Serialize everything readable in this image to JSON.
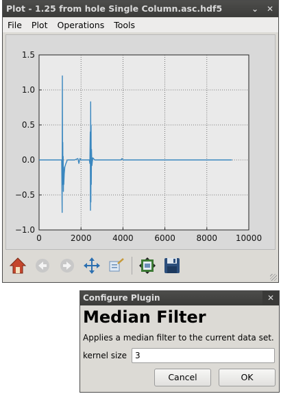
{
  "plot_window": {
    "title": "Plot - 1.25 from hole Single Column.asc.hdf5",
    "title_buttons": [
      "⌄",
      "✕"
    ],
    "menu": [
      "File",
      "Plot",
      "Operations",
      "Tools"
    ],
    "toolbar": [
      "home-icon",
      "back-icon",
      "forward-icon",
      "pan-icon",
      "zoom-icon",
      "subplots-icon",
      "save-icon"
    ]
  },
  "chart_data": {
    "type": "line",
    "title": "",
    "xlabel": "",
    "ylabel": "",
    "xlim": [
      0,
      10000
    ],
    "ylim": [
      -1.0,
      1.5
    ],
    "xticks": [
      "0",
      "2000",
      "4000",
      "6000",
      "8000",
      "10000"
    ],
    "yticks": [
      "−1.0",
      "−0.5",
      "0.0",
      "0.5",
      "1.0",
      "1.5"
    ],
    "grid": true,
    "color": "#3a87bf",
    "series": [
      {
        "x": [
          0,
          1000,
          1080,
          1100,
          1110,
          1120,
          1130,
          1140,
          1150,
          1160,
          1170,
          1180,
          1200,
          1230,
          1280,
          1350,
          1450,
          1700,
          1850,
          1900,
          1950,
          2000,
          2200,
          2400,
          2420,
          2440,
          2450,
          2460,
          2470,
          2480,
          2490,
          2500,
          2520,
          2560,
          2650,
          2800,
          3500,
          3900,
          3950,
          4000,
          5500,
          7000,
          9200
        ],
        "y": [
          0.0,
          0.0,
          0.0,
          -0.75,
          1.2,
          -0.15,
          0.25,
          -0.35,
          0.05,
          -0.45,
          -0.1,
          -0.35,
          -0.2,
          -0.1,
          -0.05,
          0.0,
          0.0,
          0.0,
          0.02,
          -0.05,
          0.02,
          0.0,
          0.0,
          0.0,
          -0.05,
          0.4,
          -0.72,
          0.83,
          -0.6,
          0.5,
          -0.35,
          0.15,
          -0.08,
          0.03,
          0.0,
          0.0,
          0.0,
          0.0,
          0.02,
          0.0,
          0.0,
          0.0,
          0.0
        ]
      }
    ]
  },
  "dialog": {
    "title": "Configure Plugin",
    "close": "✕",
    "heading": "Median Filter",
    "description": "Applies a median filter to the current data set.",
    "kernel_label": "kernel size",
    "kernel_value": "3",
    "cancel": "Cancel",
    "ok": "OK"
  }
}
